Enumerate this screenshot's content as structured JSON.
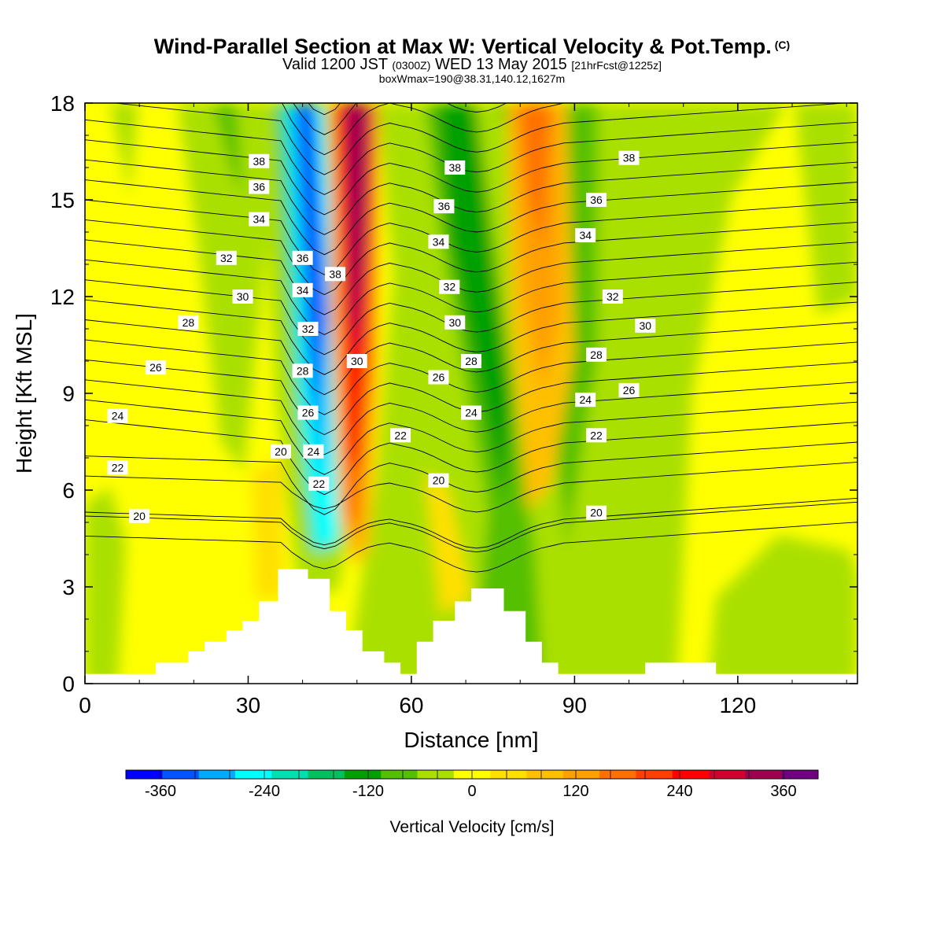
{
  "title": {
    "main": "Wind-Parallel Section at Max W: Vertical Velocity & Pot.Temp.",
    "copyright": "(C)",
    "valid_prefix": "Valid 1200 JST",
    "valid_utc": "(0300Z)",
    "valid_date": "WED 13 May 2015",
    "forecast": "[21hrFcst@1225z]",
    "boxwmax": "boxWmax=190@38.31,140.12,1627m"
  },
  "chart_data": {
    "type": "heatmap",
    "xlabel": "Distance [nm]",
    "ylabel": "Height [Kft MSL]",
    "xlim": [
      0,
      142
    ],
    "ylim": [
      0,
      18
    ],
    "x_ticks": [
      0,
      30,
      60,
      90,
      120
    ],
    "y_ticks": [
      0,
      3,
      6,
      9,
      12,
      15,
      18
    ],
    "colorbar": {
      "label": "Vertical Velocity [cm/s]",
      "tick_labels": [
        -360,
        -240,
        -120,
        0,
        120,
        240,
        360
      ],
      "boundaries": [
        -400,
        -360,
        -320,
        -280,
        -240,
        -200,
        -160,
        -120,
        -80,
        -40,
        0,
        40,
        80,
        120,
        160,
        200,
        240,
        280,
        320,
        360,
        400
      ],
      "colors": [
        "#0000ff",
        "#0055ff",
        "#00aaff",
        "#00ffff",
        "#00e0b0",
        "#00c060",
        "#00a000",
        "#55c000",
        "#aae000",
        "#ffff00",
        "#ffe000",
        "#ffc000",
        "#ffa000",
        "#ff7000",
        "#ff4000",
        "#ff0000",
        "#d00030",
        "#a00050",
        "#700080"
      ]
    },
    "w_features": [
      {
        "x": 41,
        "y": 12,
        "value": -360
      },
      {
        "x": 50,
        "y": 13,
        "value": 340
      },
      {
        "x": 73,
        "y": 11,
        "value": -140
      },
      {
        "x": 83,
        "y": 14,
        "value": 240
      },
      {
        "x": 127,
        "y": 2,
        "value": -60
      }
    ],
    "theta_contour_labels": [
      {
        "value": 38,
        "x": 32,
        "y": 16.2
      },
      {
        "value": 36,
        "x": 32,
        "y": 15.4
      },
      {
        "value": 34,
        "x": 32,
        "y": 14.4
      },
      {
        "value": 32,
        "x": 26,
        "y": 13.2
      },
      {
        "value": 30,
        "x": 29,
        "y": 12.0
      },
      {
        "value": 28,
        "x": 19,
        "y": 11.2
      },
      {
        "value": 26,
        "x": 13,
        "y": 9.8
      },
      {
        "value": 24,
        "x": 6,
        "y": 8.3
      },
      {
        "value": 22,
        "x": 6,
        "y": 6.7
      },
      {
        "value": 20,
        "x": 10,
        "y": 5.2
      },
      {
        "value": 36,
        "x": 40,
        "y": 13.2
      },
      {
        "value": 34,
        "x": 40,
        "y": 12.2
      },
      {
        "value": 32,
        "x": 41,
        "y": 11.0
      },
      {
        "value": 28,
        "x": 40,
        "y": 9.7
      },
      {
        "value": 26,
        "x": 41,
        "y": 8.4
      },
      {
        "value": 24,
        "x": 42,
        "y": 7.2
      },
      {
        "value": 22,
        "x": 43,
        "y": 6.2
      },
      {
        "value": 20,
        "x": 36,
        "y": 7.2
      },
      {
        "value": 38,
        "x": 46,
        "y": 12.7
      },
      {
        "value": 30,
        "x": 50,
        "y": 10.0
      },
      {
        "value": 38,
        "x": 68,
        "y": 16.0
      },
      {
        "value": 36,
        "x": 66,
        "y": 14.8
      },
      {
        "value": 34,
        "x": 65,
        "y": 13.7
      },
      {
        "value": 32,
        "x": 67,
        "y": 12.3
      },
      {
        "value": 30,
        "x": 68,
        "y": 11.2
      },
      {
        "value": 28,
        "x": 71,
        "y": 10.0
      },
      {
        "value": 26,
        "x": 65,
        "y": 9.5
      },
      {
        "value": 24,
        "x": 71,
        "y": 8.4
      },
      {
        "value": 22,
        "x": 58,
        "y": 7.7
      },
      {
        "value": 20,
        "x": 65,
        "y": 6.3
      },
      {
        "value": 38,
        "x": 100,
        "y": 16.3
      },
      {
        "value": 36,
        "x": 94,
        "y": 15.0
      },
      {
        "value": 34,
        "x": 92,
        "y": 13.9
      },
      {
        "value": 32,
        "x": 97,
        "y": 12.0
      },
      {
        "value": 30,
        "x": 103,
        "y": 11.1
      },
      {
        "value": 28,
        "x": 94,
        "y": 10.2
      },
      {
        "value": 26,
        "x": 100,
        "y": 9.1
      },
      {
        "value": 24,
        "x": 92,
        "y": 8.8
      },
      {
        "value": 22,
        "x": 94,
        "y": 7.7
      },
      {
        "value": 20,
        "x": 94,
        "y": 5.3
      }
    ],
    "terrain": [
      [
        0,
        0.3
      ],
      [
        13,
        0.3
      ],
      [
        13,
        0.65
      ],
      [
        19,
        0.65
      ],
      [
        19,
        1.0
      ],
      [
        22,
        1.0
      ],
      [
        22,
        1.3
      ],
      [
        26,
        1.3
      ],
      [
        26,
        1.65
      ],
      [
        29,
        1.65
      ],
      [
        29,
        1.95
      ],
      [
        32,
        1.95
      ],
      [
        32,
        2.55
      ],
      [
        35.5,
        2.55
      ],
      [
        35.5,
        3.55
      ],
      [
        41,
        3.55
      ],
      [
        41,
        3.25
      ],
      [
        45,
        3.25
      ],
      [
        45,
        2.25
      ],
      [
        48,
        2.25
      ],
      [
        48,
        1.65
      ],
      [
        51,
        1.65
      ],
      [
        51,
        1.0
      ],
      [
        55,
        1.0
      ],
      [
        55,
        0.65
      ],
      [
        58,
        0.65
      ],
      [
        58,
        0.3
      ],
      [
        61,
        0.3
      ],
      [
        61,
        1.3
      ],
      [
        64,
        1.3
      ],
      [
        64,
        1.95
      ],
      [
        68,
        1.95
      ],
      [
        68,
        2.55
      ],
      [
        71,
        2.55
      ],
      [
        71,
        2.95
      ],
      [
        77,
        2.95
      ],
      [
        77,
        2.25
      ],
      [
        81,
        2.25
      ],
      [
        81,
        1.3
      ],
      [
        84,
        1.3
      ],
      [
        84,
        0.65
      ],
      [
        87,
        0.65
      ],
      [
        87,
        0.3
      ],
      [
        103,
        0.3
      ],
      [
        103,
        0.65
      ],
      [
        116,
        0.65
      ],
      [
        116,
        0.3
      ],
      [
        142,
        0.3
      ]
    ]
  }
}
